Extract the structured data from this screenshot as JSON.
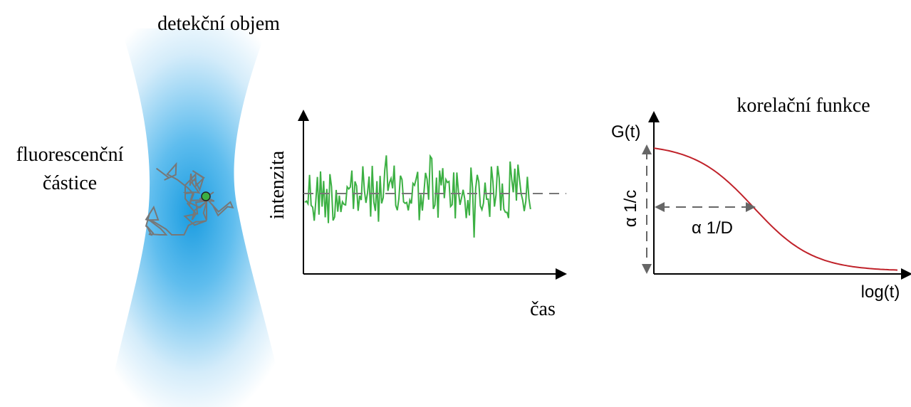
{
  "labels": {
    "detection_volume": "detekční objem",
    "particle_line1": "fluorescenční",
    "particle_line2": "částice"
  },
  "trace": {
    "y_label": "intenzita",
    "x_label": "čas"
  },
  "correlation": {
    "title": "korelační funkce",
    "y_label": "G(t)",
    "x_label": "log(t)",
    "amplitude_label": "α 1/c",
    "time_label": "α 1/D"
  }
}
